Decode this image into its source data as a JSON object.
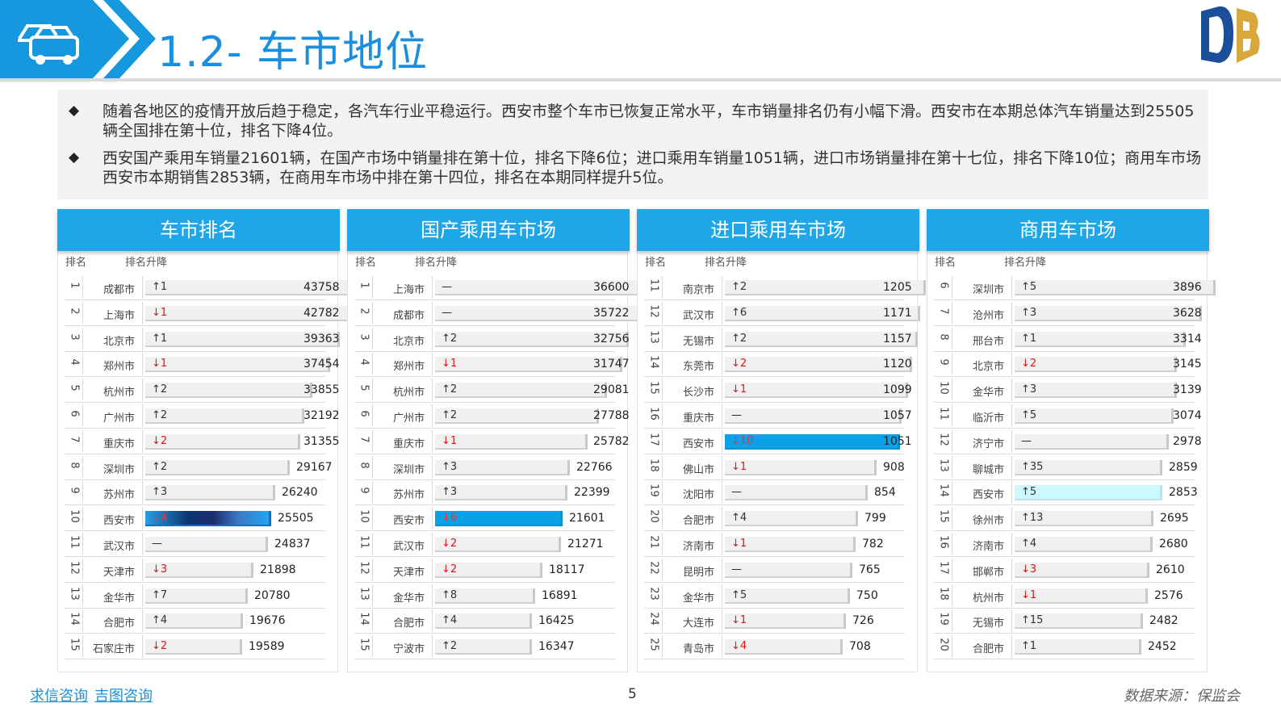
{
  "header": {
    "title": "1.2- 车市地位"
  },
  "summary": {
    "bullets": [
      "随着各地区的疫情开放后趋于稳定，各汽车行业平稳运行。西安市整个车市已恢复正常水平，车市销量排名仍有小幅下滑。西安市在本期总体汽车销量达到25505辆全国排在第十位，排名下降4位。",
      "西安国产乘用车销量21601辆，在国产市场中销量排在第十位，排名下降6位；进口乘用车销量1051辆，进口市场销量排在第十七位，排名下降10位；商用车市场西安市本期销售2853辆，在商用车市场中排在第十四位，排名在本期同样提升5位。"
    ]
  },
  "col_headers": {
    "rank": "排名",
    "change": "排名升降"
  },
  "panels": [
    {
      "title": "车市排名",
      "max": 43758,
      "rows": [
        {
          "rank": "1",
          "city": "成都市",
          "chg": "↑1",
          "dir": "up",
          "value": 43758
        },
        {
          "rank": "2",
          "city": "上海市",
          "chg": "↓1",
          "dir": "down",
          "value": 42782
        },
        {
          "rank": "3",
          "city": "北京市",
          "chg": "↑1",
          "dir": "up",
          "value": 39363
        },
        {
          "rank": "4",
          "city": "郑州市",
          "chg": "↓1",
          "dir": "down",
          "value": 37454
        },
        {
          "rank": "5",
          "city": "杭州市",
          "chg": "↑2",
          "dir": "up",
          "value": 33855
        },
        {
          "rank": "6",
          "city": "广州市",
          "chg": "↑2",
          "dir": "up",
          "value": 32192
        },
        {
          "rank": "7",
          "city": "重庆市",
          "chg": "↓2",
          "dir": "down",
          "value": 31355
        },
        {
          "rank": "8",
          "city": "深圳市",
          "chg": "↑2",
          "dir": "up",
          "value": 29167
        },
        {
          "rank": "9",
          "city": "苏州市",
          "chg": "↑3",
          "dir": "up",
          "value": 26240
        },
        {
          "rank": "10",
          "city": "西安市",
          "chg": "↓4",
          "dir": "down",
          "value": 25505,
          "hl": "dark"
        },
        {
          "rank": "11",
          "city": "武汉市",
          "chg": "—",
          "dir": "flat",
          "value": 24837
        },
        {
          "rank": "12",
          "city": "天津市",
          "chg": "↓3",
          "dir": "down",
          "value": 21898
        },
        {
          "rank": "13",
          "city": "金华市",
          "chg": "↑7",
          "dir": "up",
          "value": 20780
        },
        {
          "rank": "14",
          "city": "合肥市",
          "chg": "↑4",
          "dir": "up",
          "value": 19676
        },
        {
          "rank": "15",
          "city": "石家庄市",
          "chg": "↓2",
          "dir": "down",
          "value": 19589
        }
      ]
    },
    {
      "title": "国产乘用车市场",
      "max": 36600,
      "rows": [
        {
          "rank": "1",
          "city": "上海市",
          "chg": "—",
          "dir": "flat",
          "value": 36600
        },
        {
          "rank": "2",
          "city": "成都市",
          "chg": "—",
          "dir": "flat",
          "value": 35722
        },
        {
          "rank": "3",
          "city": "北京市",
          "chg": "↑2",
          "dir": "up",
          "value": 32756
        },
        {
          "rank": "4",
          "city": "郑州市",
          "chg": "↓1",
          "dir": "down",
          "value": 31747
        },
        {
          "rank": "5",
          "city": "杭州市",
          "chg": "↑2",
          "dir": "up",
          "value": 29081
        },
        {
          "rank": "6",
          "city": "广州市",
          "chg": "↑2",
          "dir": "up",
          "value": 27788
        },
        {
          "rank": "7",
          "city": "重庆市",
          "chg": "↓1",
          "dir": "down",
          "value": 25782
        },
        {
          "rank": "8",
          "city": "深圳市",
          "chg": "↑3",
          "dir": "up",
          "value": 22766
        },
        {
          "rank": "9",
          "city": "苏州市",
          "chg": "↑3",
          "dir": "up",
          "value": 22399
        },
        {
          "rank": "10",
          "city": "西安市",
          "chg": "↓6",
          "dir": "down",
          "value": 21601,
          "hl": "blue"
        },
        {
          "rank": "11",
          "city": "武汉市",
          "chg": "↓2",
          "dir": "down",
          "value": 21271
        },
        {
          "rank": "12",
          "city": "天津市",
          "chg": "↓2",
          "dir": "down",
          "value": 18117
        },
        {
          "rank": "13",
          "city": "金华市",
          "chg": "↑8",
          "dir": "up",
          "value": 16891
        },
        {
          "rank": "14",
          "city": "合肥市",
          "chg": "↑4",
          "dir": "up",
          "value": 16425
        },
        {
          "rank": "15",
          "city": "宁波市",
          "chg": "↑2",
          "dir": "up",
          "value": 16347
        }
      ]
    },
    {
      "title": "进口乘用车市场",
      "max": 1205,
      "rows": [
        {
          "rank": "11",
          "city": "南京市",
          "chg": "↑2",
          "dir": "up",
          "value": 1205
        },
        {
          "rank": "12",
          "city": "武汉市",
          "chg": "↑6",
          "dir": "up",
          "value": 1171
        },
        {
          "rank": "13",
          "city": "无锡市",
          "chg": "↑2",
          "dir": "up",
          "value": 1157
        },
        {
          "rank": "14",
          "city": "东莞市",
          "chg": "↓2",
          "dir": "down",
          "value": 1120
        },
        {
          "rank": "15",
          "city": "长沙市",
          "chg": "↓1",
          "dir": "down",
          "value": 1099
        },
        {
          "rank": "16",
          "city": "重庆市",
          "chg": "—",
          "dir": "flat",
          "value": 1057
        },
        {
          "rank": "17",
          "city": "西安市",
          "chg": "↓10",
          "dir": "down",
          "value": 1051,
          "hl": "blue"
        },
        {
          "rank": "18",
          "city": "佛山市",
          "chg": "↓1",
          "dir": "down",
          "value": 908
        },
        {
          "rank": "19",
          "city": "沈阳市",
          "chg": "—",
          "dir": "flat",
          "value": 854
        },
        {
          "rank": "20",
          "city": "合肥市",
          "chg": "↑4",
          "dir": "up",
          "value": 799
        },
        {
          "rank": "21",
          "city": "济南市",
          "chg": "↓1",
          "dir": "down",
          "value": 782
        },
        {
          "rank": "22",
          "city": "昆明市",
          "chg": "—",
          "dir": "flat",
          "value": 765
        },
        {
          "rank": "23",
          "city": "金华市",
          "chg": "↑5",
          "dir": "up",
          "value": 750
        },
        {
          "rank": "24",
          "city": "大连市",
          "chg": "↓1",
          "dir": "down",
          "value": 726
        },
        {
          "rank": "25",
          "city": "青岛市",
          "chg": "↓4",
          "dir": "down",
          "value": 708
        }
      ]
    },
    {
      "title": "商用车市场",
      "max": 3896,
      "rows": [
        {
          "rank": "6",
          "city": "深圳市",
          "chg": "↑5",
          "dir": "up",
          "value": 3896
        },
        {
          "rank": "7",
          "city": "沧州市",
          "chg": "↑3",
          "dir": "up",
          "value": 3628
        },
        {
          "rank": "8",
          "city": "邢台市",
          "chg": "↑1",
          "dir": "up",
          "value": 3314
        },
        {
          "rank": "9",
          "city": "北京市",
          "chg": "↓2",
          "dir": "down",
          "value": 3145
        },
        {
          "rank": "10",
          "city": "金华市",
          "chg": "↑3",
          "dir": "up",
          "value": 3139
        },
        {
          "rank": "11",
          "city": "临沂市",
          "chg": "↑5",
          "dir": "up",
          "value": 3074
        },
        {
          "rank": "12",
          "city": "济宁市",
          "chg": "—",
          "dir": "flat",
          "value": 2978
        },
        {
          "rank": "13",
          "city": "聊城市",
          "chg": "↑35",
          "dir": "up",
          "value": 2859
        },
        {
          "rank": "14",
          "city": "西安市",
          "chg": "↑5",
          "dir": "up",
          "value": 2853,
          "hl": "cyan"
        },
        {
          "rank": "15",
          "city": "徐州市",
          "chg": "↑13",
          "dir": "up",
          "value": 2695
        },
        {
          "rank": "16",
          "city": "济南市",
          "chg": "↑4",
          "dir": "up",
          "value": 2680
        },
        {
          "rank": "17",
          "city": "邯郸市",
          "chg": "↓3",
          "dir": "down",
          "value": 2610
        },
        {
          "rank": "18",
          "city": "杭州市",
          "chg": "↓1",
          "dir": "down",
          "value": 2576
        },
        {
          "rank": "19",
          "city": "无锡市",
          "chg": "↑15",
          "dir": "up",
          "value": 2482
        },
        {
          "rank": "20",
          "city": "合肥市",
          "chg": "↑1",
          "dir": "up",
          "value": 2452
        }
      ]
    }
  ],
  "footer": {
    "links": [
      "求信咨询",
      "吉图咨询"
    ],
    "page": "5",
    "source": "数据来源：保监会"
  },
  "colors": {
    "brand_blue": "#1fa6e8",
    "title_blue": "#1a8fe0",
    "highlight_blue": "#09a2e9",
    "down_red": "#e0141a"
  }
}
